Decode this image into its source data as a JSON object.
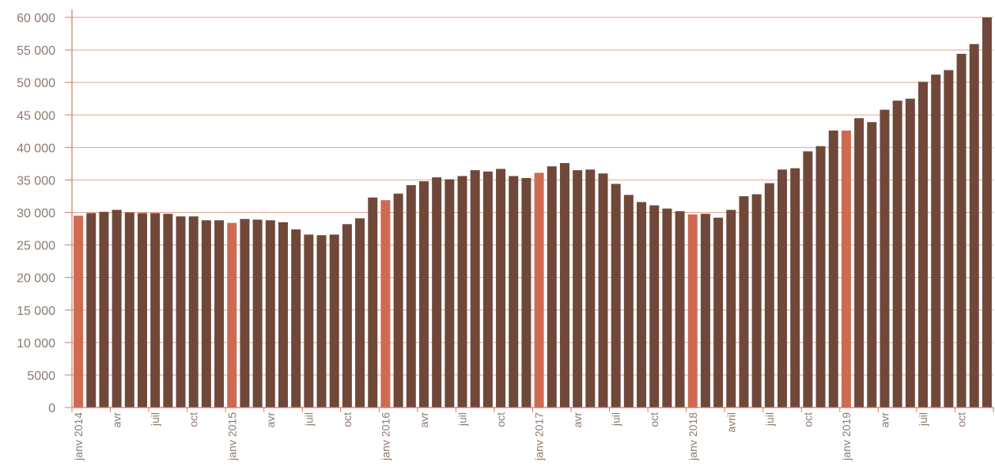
{
  "chart_data": {
    "type": "bar",
    "title": "",
    "xlabel": "",
    "ylabel": "",
    "ylim": [
      0,
      60000
    ],
    "grid": true,
    "y_ticks": [
      0,
      5000,
      10000,
      15000,
      20000,
      25000,
      30000,
      35000,
      40000,
      45000,
      50000,
      55000,
      60000
    ],
    "y_tick_labels": [
      "0",
      "5000",
      "10 000",
      "15 000",
      "20 000",
      "25 000",
      "30 000",
      "35 000",
      "40 000",
      "45 000",
      "50 000",
      "55 000",
      "60 000"
    ],
    "x_tick_labels": [
      {
        "index": 0,
        "label": "janv 2014"
      },
      {
        "index": 3,
        "label": "avr"
      },
      {
        "index": 6,
        "label": "juil"
      },
      {
        "index": 9,
        "label": "oct"
      },
      {
        "index": 12,
        "label": "janv 2015"
      },
      {
        "index": 15,
        "label": "avr"
      },
      {
        "index": 18,
        "label": "juil"
      },
      {
        "index": 21,
        "label": "oct"
      },
      {
        "index": 24,
        "label": "janv 2016"
      },
      {
        "index": 27,
        "label": "avr"
      },
      {
        "index": 30,
        "label": "juil"
      },
      {
        "index": 33,
        "label": "oct"
      },
      {
        "index": 36,
        "label": "janv 2017"
      },
      {
        "index": 39,
        "label": "avr"
      },
      {
        "index": 42,
        "label": "juil"
      },
      {
        "index": 45,
        "label": "oct"
      },
      {
        "index": 48,
        "label": "janv 2018"
      },
      {
        "index": 51,
        "label": "avril"
      },
      {
        "index": 54,
        "label": "juil"
      },
      {
        "index": 57,
        "label": "oct"
      },
      {
        "index": 60,
        "label": "janv 2019"
      },
      {
        "index": 63,
        "label": "avr"
      },
      {
        "index": 66,
        "label": "juil"
      },
      {
        "index": 69,
        "label": "oct"
      }
    ],
    "highlight_indices": [
      0,
      12,
      24,
      36,
      48,
      60
    ],
    "values": [
      29500,
      29900,
      30100,
      30400,
      30000,
      29900,
      29900,
      29800,
      29400,
      29400,
      28800,
      28800,
      28400,
      29000,
      28900,
      28800,
      28500,
      27400,
      26600,
      26500,
      26600,
      28200,
      29100,
      32300,
      31900,
      32900,
      34200,
      34800,
      35400,
      35100,
      35600,
      36500,
      36300,
      36700,
      35600,
      35300,
      36100,
      37100,
      37600,
      36500,
      36600,
      36000,
      34400,
      32700,
      31600,
      31100,
      30600,
      30200,
      29700,
      29800,
      29200,
      30400,
      32500,
      32800,
      34500,
      36600,
      36800,
      39400,
      40200,
      42600,
      42600,
      44500,
      43900,
      45800,
      47200,
      47500,
      50100,
      51200,
      51900,
      54400,
      55900,
      60000
    ],
    "colors": {
      "bar": "#70483a",
      "highlight": "#cf6a52",
      "axis": "#cf7b62",
      "grid": "#e0a48f",
      "text": "#8c7a70"
    }
  }
}
